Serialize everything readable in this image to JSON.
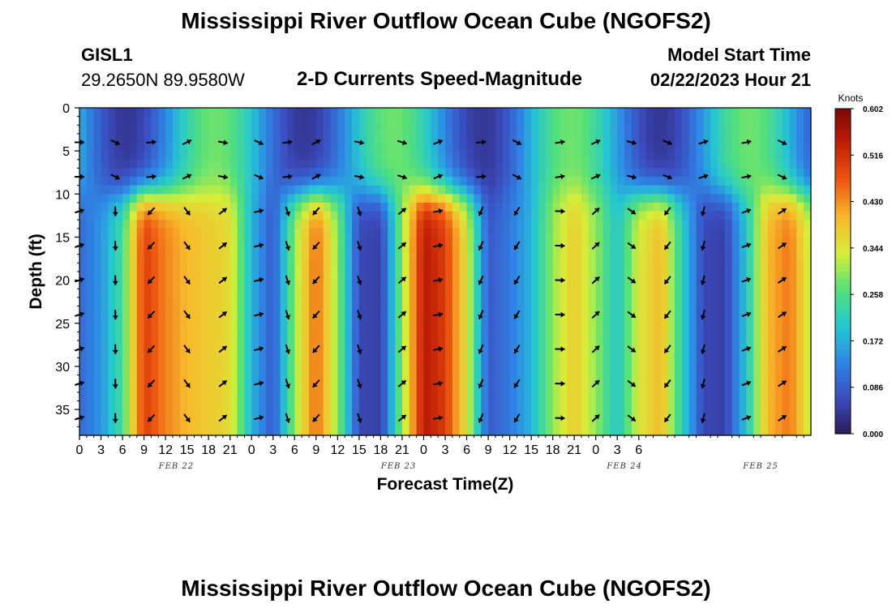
{
  "header": {
    "title": "Mississippi River Outflow Ocean Cube (NGOFS2)",
    "station_id": "GISL1",
    "station_coords": "29.2650N  89.9580W",
    "plot_title": "2-D Currents Speed-Magnitude",
    "model_start_label": "Model Start Time",
    "model_start_value": "02/22/2023 Hour 21"
  },
  "footer": {
    "title": "Mississippi River Outflow Ocean Cube (NGOFS2)"
  },
  "chart_data": {
    "type": "heatmap",
    "title": "2-D Currents Speed-Magnitude",
    "xlabel": "Forecast Time(Z)",
    "ylabel": "Depth (ft)",
    "x_hours_range": [
      0,
      102
    ],
    "ylim": [
      0,
      38
    ],
    "y_ticks": [
      0,
      5,
      10,
      15,
      20,
      25,
      30,
      35
    ],
    "x_tick_labels": [
      "0",
      "3",
      "6",
      "9",
      "12",
      "15",
      "18",
      "21",
      "0",
      "3",
      "6",
      "9",
      "12",
      "15",
      "18",
      "21",
      "0",
      "3",
      "6",
      "9",
      "12",
      "15",
      "18",
      "21",
      "0",
      "3",
      "6"
    ],
    "date_labels": [
      {
        "text": "FEB 22",
        "hour": 13.5
      },
      {
        "text": "FEB 23",
        "hour": 44.5
      },
      {
        "text": "FEB 24",
        "hour": 76
      },
      {
        "text": "FEB 25",
        "hour": 95
      }
    ],
    "colorbar": {
      "title": "Knots",
      "min": 0.0,
      "max": 0.602,
      "tick_values": [
        0.0,
        0.086,
        0.172,
        0.258,
        0.344,
        0.43,
        0.516,
        0.602
      ],
      "tick_labels": [
        "0.000",
        "0.086",
        "0.172",
        "0.258",
        "0.344",
        "0.430",
        "0.516",
        "0.602"
      ],
      "colors": [
        "#2a1a55",
        "#3b4cc0",
        "#2f86e6",
        "#25c8d0",
        "#55e07a",
        "#d6ee3a",
        "#f8b92c",
        "#ee5a12",
        "#c42006",
        "#7a0a03"
      ]
    },
    "bottom_layer_speed_knots": [
      {
        "hour": 0,
        "value": 0.1
      },
      {
        "hour": 3,
        "value": 0.15
      },
      {
        "hour": 6,
        "value": 0.25
      },
      {
        "hour": 9,
        "value": 0.5
      },
      {
        "hour": 12,
        "value": 0.44
      },
      {
        "hour": 15,
        "value": 0.4
      },
      {
        "hour": 18,
        "value": 0.38
      },
      {
        "hour": 21,
        "value": 0.36
      },
      {
        "hour": 24,
        "value": 0.18
      },
      {
        "hour": 27,
        "value": 0.08
      },
      {
        "hour": 30,
        "value": 0.3
      },
      {
        "hour": 33,
        "value": 0.46
      },
      {
        "hour": 36,
        "value": 0.3
      },
      {
        "hour": 39,
        "value": 0.06
      },
      {
        "hour": 42,
        "value": 0.05
      },
      {
        "hour": 45,
        "value": 0.3
      },
      {
        "hour": 48,
        "value": 0.55
      },
      {
        "hour": 51,
        "value": 0.5
      },
      {
        "hour": 54,
        "value": 0.35
      },
      {
        "hour": 57,
        "value": 0.08
      },
      {
        "hour": 60,
        "value": 0.12
      },
      {
        "hour": 63,
        "value": 0.18
      },
      {
        "hour": 66,
        "value": 0.3
      },
      {
        "hour": 69,
        "value": 0.38
      },
      {
        "hour": 72,
        "value": 0.3
      },
      {
        "hour": 75,
        "value": 0.2
      },
      {
        "hour": 78,
        "value": 0.34
      },
      {
        "hour": 81,
        "value": 0.4
      },
      {
        "hour": 84,
        "value": 0.22
      },
      {
        "hour": 87,
        "value": 0.06
      },
      {
        "hour": 90,
        "value": 0.05
      },
      {
        "hour": 93,
        "value": 0.2
      },
      {
        "hour": 96,
        "value": 0.4
      },
      {
        "hour": 99,
        "value": 0.45
      },
      {
        "hour": 102,
        "value": 0.32
      }
    ],
    "arrow_depths_ft": [
      4,
      8,
      12,
      16,
      20,
      24,
      28,
      32,
      36
    ],
    "arrow_hours": [
      0,
      5,
      10,
      15,
      20,
      25,
      29,
      33,
      39,
      45,
      50,
      56,
      61,
      67,
      72,
      77,
      82,
      87,
      93,
      98
    ]
  }
}
